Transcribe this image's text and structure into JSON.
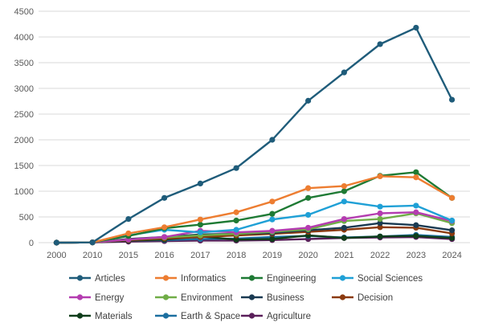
{
  "chart_data": {
    "type": "line",
    "x": [
      "2000",
      "2010",
      "2015",
      "2016",
      "2017",
      "2018",
      "2019",
      "2020",
      "2021",
      "2022",
      "2023",
      "2024"
    ],
    "ylim": [
      0,
      4500
    ],
    "yticks": [
      0,
      500,
      1000,
      1500,
      2000,
      2500,
      3000,
      3500,
      4000,
      4500
    ],
    "grid": "horizontal",
    "legend": "bottom",
    "series": [
      {
        "name": "Articles",
        "color": "#1f5c7a",
        "values": [
          0,
          5,
          460,
          870,
          1150,
          1450,
          2000,
          2760,
          3310,
          3860,
          4180,
          2780
        ]
      },
      {
        "name": "Informatics",
        "color": "#ed7d31",
        "values": [
          0,
          5,
          180,
          300,
          450,
          590,
          800,
          1060,
          1100,
          1290,
          1270,
          870
        ]
      },
      {
        "name": "Engineering",
        "color": "#1e7a34",
        "values": [
          0,
          5,
          130,
          280,
          350,
          430,
          560,
          870,
          1000,
          1300,
          1370,
          870
        ]
      },
      {
        "name": "Social Sciences",
        "color": "#1fa0d6",
        "values": [
          0,
          5,
          140,
          250,
          200,
          250,
          450,
          540,
          800,
          700,
          720,
          430
        ]
      },
      {
        "name": "Energy",
        "color": "#b43cb0",
        "values": [
          0,
          5,
          60,
          110,
          230,
          200,
          230,
          290,
          460,
          570,
          590,
          420
        ]
      },
      {
        "name": "Environment",
        "color": "#70ad47",
        "values": [
          0,
          5,
          60,
          100,
          140,
          170,
          210,
          260,
          420,
          460,
          570,
          380
        ]
      },
      {
        "name": "Business",
        "color": "#1a3a52",
        "values": [
          0,
          5,
          70,
          110,
          160,
          170,
          190,
          240,
          290,
          380,
          340,
          240
        ]
      },
      {
        "name": "Decision",
        "color": "#8b3a0f",
        "values": [
          0,
          5,
          50,
          80,
          110,
          140,
          170,
          210,
          250,
          300,
          290,
          180
        ]
      },
      {
        "name": "Materials",
        "color": "#0f3d1a",
        "values": [
          0,
          5,
          40,
          60,
          120,
          60,
          70,
          140,
          90,
          120,
          130,
          90
        ]
      },
      {
        "name": "Earth & Space",
        "color": "#1c6fa0",
        "values": [
          0,
          5,
          40,
          50,
          70,
          80,
          110,
          130,
          100,
          120,
          150,
          110
        ]
      },
      {
        "name": "Agriculture",
        "color": "#5a1f5a",
        "values": [
          0,
          5,
          20,
          30,
          40,
          40,
          50,
          70,
          90,
          100,
          110,
          70
        ]
      }
    ]
  }
}
